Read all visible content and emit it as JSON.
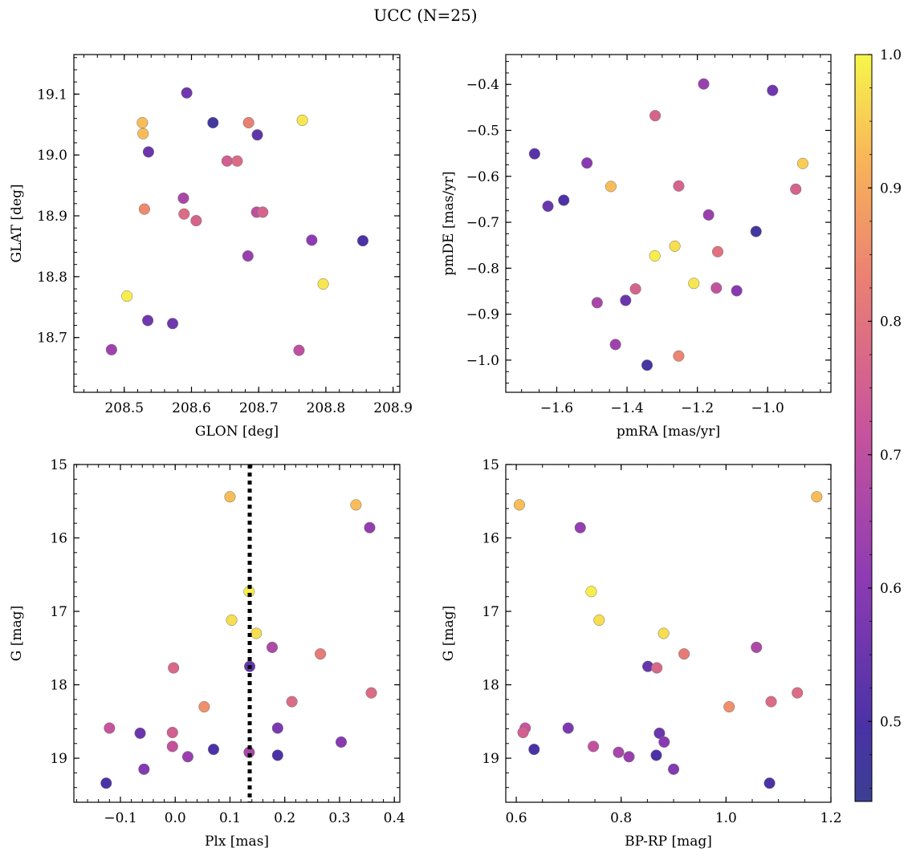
{
  "figure": {
    "title": "UCC (N=25)"
  },
  "colorbar": {
    "min": 0.44,
    "max": 1.0,
    "ticks": [
      "0.5",
      "0.6",
      "0.7",
      "0.8",
      "0.9",
      "1.0"
    ]
  },
  "chart_data": [
    {
      "type": "scatter",
      "xlabel": "GLON [deg]",
      "ylabel": "GLAT [deg]",
      "xlim": [
        208.425,
        208.91
      ],
      "ylim": [
        18.61,
        19.165
      ],
      "y_inverted": false,
      "xticks": [
        208.5,
        208.6,
        208.7,
        208.8,
        208.9
      ],
      "xtick_labels": [
        "208.5",
        "208.6",
        "208.7",
        "208.8",
        "208.9"
      ],
      "yticks": [
        18.7,
        18.8,
        18.9,
        19.0,
        19.1
      ],
      "ytick_labels": [
        "18.7",
        "18.8",
        "18.9",
        "19.0",
        "19.1"
      ],
      "x_minor": 0.02,
      "y_minor": 0.02,
      "points": [
        {
          "x": 208.593,
          "y": 19.102,
          "c": 0.56
        },
        {
          "x": 208.632,
          "y": 19.053,
          "c": 0.47
        },
        {
          "x": 208.527,
          "y": 19.053,
          "c": 0.93
        },
        {
          "x": 208.528,
          "y": 19.035,
          "c": 0.93
        },
        {
          "x": 208.536,
          "y": 19.005,
          "c": 0.55
        },
        {
          "x": 208.685,
          "y": 19.053,
          "c": 0.83
        },
        {
          "x": 208.698,
          "y": 19.033,
          "c": 0.53
        },
        {
          "x": 208.765,
          "y": 19.057,
          "c": 0.98
        },
        {
          "x": 208.653,
          "y": 18.99,
          "c": 0.75
        },
        {
          "x": 208.668,
          "y": 18.99,
          "c": 0.78
        },
        {
          "x": 208.588,
          "y": 18.929,
          "c": 0.66
        },
        {
          "x": 208.53,
          "y": 18.911,
          "c": 0.85
        },
        {
          "x": 208.589,
          "y": 18.903,
          "c": 0.78
        },
        {
          "x": 208.607,
          "y": 18.892,
          "c": 0.76
        },
        {
          "x": 208.697,
          "y": 18.906,
          "c": 0.7
        },
        {
          "x": 208.706,
          "y": 18.906,
          "c": 0.76
        },
        {
          "x": 208.779,
          "y": 18.86,
          "c": 0.61
        },
        {
          "x": 208.855,
          "y": 18.859,
          "c": 0.5
        },
        {
          "x": 208.684,
          "y": 18.834,
          "c": 0.63
        },
        {
          "x": 208.796,
          "y": 18.788,
          "c": 0.98
        },
        {
          "x": 208.504,
          "y": 18.768,
          "c": 0.99
        },
        {
          "x": 208.535,
          "y": 18.728,
          "c": 0.56
        },
        {
          "x": 208.572,
          "y": 18.723,
          "c": 0.56
        },
        {
          "x": 208.481,
          "y": 18.68,
          "c": 0.64
        },
        {
          "x": 208.76,
          "y": 18.679,
          "c": 0.7
        }
      ]
    },
    {
      "type": "scatter",
      "xlabel": "pmRA [mas/yr]",
      "ylabel": "pmDE [mas/yr]",
      "xlim": [
        -1.745,
        -0.82
      ],
      "ylim": [
        -1.07,
        -0.335
      ],
      "y_inverted": false,
      "xticks": [
        -1.6,
        -1.4,
        -1.2,
        -1.0
      ],
      "xtick_labels": [
        "−1.6",
        "−1.4",
        "−1.2",
        "−1.0"
      ],
      "yticks": [
        -1.0,
        -0.9,
        -0.8,
        -0.7,
        -0.6,
        -0.5,
        -0.4
      ],
      "ytick_labels": [
        "−1.0",
        "−0.9",
        "−0.8",
        "−0.7",
        "−0.6",
        "−0.5",
        "−0.4"
      ],
      "x_minor": 0.05,
      "y_minor": 0.025,
      "points": [
        {
          "x": -1.182,
          "y": -0.399,
          "c": 0.63
        },
        {
          "x": -0.986,
          "y": -0.413,
          "c": 0.56
        },
        {
          "x": -1.32,
          "y": -0.468,
          "c": 0.76
        },
        {
          "x": -1.663,
          "y": -0.551,
          "c": 0.52
        },
        {
          "x": -1.514,
          "y": -0.571,
          "c": 0.6
        },
        {
          "x": -1.446,
          "y": -0.622,
          "c": 0.93
        },
        {
          "x": -1.253,
          "y": -0.621,
          "c": 0.76
        },
        {
          "x": -0.9,
          "y": -0.572,
          "c": 0.95
        },
        {
          "x": -0.92,
          "y": -0.628,
          "c": 0.76
        },
        {
          "x": -1.625,
          "y": -0.665,
          "c": 0.55
        },
        {
          "x": -1.58,
          "y": -0.652,
          "c": 0.5
        },
        {
          "x": -1.168,
          "y": -0.684,
          "c": 0.63
        },
        {
          "x": -1.033,
          "y": -0.72,
          "c": 0.47
        },
        {
          "x": -1.264,
          "y": -0.752,
          "c": 0.97
        },
        {
          "x": -1.321,
          "y": -0.773,
          "c": 0.99
        },
        {
          "x": -1.142,
          "y": -0.764,
          "c": 0.8
        },
        {
          "x": -1.21,
          "y": -0.833,
          "c": 0.98
        },
        {
          "x": -1.376,
          "y": -0.845,
          "c": 0.76
        },
        {
          "x": -1.146,
          "y": -0.843,
          "c": 0.71
        },
        {
          "x": -1.088,
          "y": -0.849,
          "c": 0.6
        },
        {
          "x": -1.485,
          "y": -0.875,
          "c": 0.66
        },
        {
          "x": -1.404,
          "y": -0.87,
          "c": 0.55
        },
        {
          "x": -1.433,
          "y": -0.966,
          "c": 0.64
        },
        {
          "x": -1.253,
          "y": -0.991,
          "c": 0.84
        },
        {
          "x": -1.343,
          "y": -1.011,
          "c": 0.48
        }
      ]
    },
    {
      "type": "scatter",
      "xlabel": "Plx [mas]",
      "ylabel": "G [mag]",
      "xlim": [
        -0.185,
        0.41
      ],
      "ylim": [
        15.0,
        19.6
      ],
      "y_inverted": true,
      "xticks": [
        -0.1,
        0.0,
        0.1,
        0.2,
        0.3,
        0.4
      ],
      "xtick_labels": [
        "−0.1",
        "0.0",
        "0.1",
        "0.2",
        "0.3",
        "0.4"
      ],
      "yticks": [
        15,
        16,
        17,
        18,
        19
      ],
      "ytick_labels": [
        "15",
        "16",
        "17",
        "18",
        "19"
      ],
      "x_minor": 0.02,
      "y_minor": 0.2,
      "vline": 0.136,
      "points": [
        {
          "x": 0.1,
          "y": 15.44,
          "c": 0.93
        },
        {
          "x": 0.33,
          "y": 15.55,
          "c": 0.93
        },
        {
          "x": 0.355,
          "y": 15.86,
          "c": 0.62
        },
        {
          "x": 0.135,
          "y": 16.73,
          "c": 0.99
        },
        {
          "x": 0.103,
          "y": 17.12,
          "c": 0.97
        },
        {
          "x": 0.148,
          "y": 17.3,
          "c": 0.97
        },
        {
          "x": 0.177,
          "y": 17.49,
          "c": 0.67
        },
        {
          "x": 0.265,
          "y": 17.58,
          "c": 0.82
        },
        {
          "x": 0.136,
          "y": 17.75,
          "c": 0.54
        },
        {
          "x": -0.003,
          "y": 17.77,
          "c": 0.77
        },
        {
          "x": 0.358,
          "y": 18.11,
          "c": 0.78
        },
        {
          "x": 0.213,
          "y": 18.23,
          "c": 0.78
        },
        {
          "x": 0.053,
          "y": 18.3,
          "c": 0.86
        },
        {
          "x": -0.12,
          "y": 18.59,
          "c": 0.72
        },
        {
          "x": -0.064,
          "y": 18.66,
          "c": 0.55
        },
        {
          "x": -0.005,
          "y": 18.65,
          "c": 0.75
        },
        {
          "x": 0.187,
          "y": 18.59,
          "c": 0.58
        },
        {
          "x": -0.005,
          "y": 18.84,
          "c": 0.71
        },
        {
          "x": 0.303,
          "y": 18.78,
          "c": 0.6
        },
        {
          "x": 0.07,
          "y": 18.88,
          "c": 0.5
        },
        {
          "x": 0.135,
          "y": 18.92,
          "c": 0.66
        },
        {
          "x": 0.023,
          "y": 18.98,
          "c": 0.63
        },
        {
          "x": 0.187,
          "y": 18.96,
          "c": 0.5
        },
        {
          "x": -0.057,
          "y": 19.15,
          "c": 0.59
        },
        {
          "x": -0.126,
          "y": 19.34,
          "c": 0.5
        }
      ]
    },
    {
      "type": "scatter",
      "xlabel": "BP-RP [mag]",
      "ylabel": "G [mag]",
      "xlim": [
        0.58,
        1.2
      ],
      "ylim": [
        15.0,
        19.6
      ],
      "y_inverted": true,
      "xticks": [
        0.6,
        0.8,
        1.0,
        1.2
      ],
      "xtick_labels": [
        "0.6",
        "0.8",
        "1.0",
        "1.2"
      ],
      "yticks": [
        15,
        16,
        17,
        18,
        19
      ],
      "ytick_labels": [
        "15",
        "16",
        "17",
        "18",
        "19"
      ],
      "x_minor": 0.05,
      "y_minor": 0.2,
      "points": [
        {
          "x": 0.606,
          "y": 15.55,
          "c": 0.93
        },
        {
          "x": 1.173,
          "y": 15.44,
          "c": 0.93
        },
        {
          "x": 0.722,
          "y": 15.86,
          "c": 0.62
        },
        {
          "x": 0.743,
          "y": 16.73,
          "c": 0.99
        },
        {
          "x": 0.758,
          "y": 17.12,
          "c": 0.97
        },
        {
          "x": 0.881,
          "y": 17.3,
          "c": 0.97
        },
        {
          "x": 1.058,
          "y": 17.49,
          "c": 0.67
        },
        {
          "x": 0.92,
          "y": 17.58,
          "c": 0.82
        },
        {
          "x": 0.851,
          "y": 17.75,
          "c": 0.54
        },
        {
          "x": 0.868,
          "y": 17.77,
          "c": 0.77
        },
        {
          "x": 1.136,
          "y": 18.11,
          "c": 0.78
        },
        {
          "x": 1.086,
          "y": 18.23,
          "c": 0.78
        },
        {
          "x": 1.006,
          "y": 18.3,
          "c": 0.86
        },
        {
          "x": 0.617,
          "y": 18.59,
          "c": 0.72
        },
        {
          "x": 0.613,
          "y": 18.65,
          "c": 0.75
        },
        {
          "x": 0.699,
          "y": 18.59,
          "c": 0.58
        },
        {
          "x": 0.873,
          "y": 18.66,
          "c": 0.55
        },
        {
          "x": 0.634,
          "y": 18.88,
          "c": 0.5
        },
        {
          "x": 0.747,
          "y": 18.84,
          "c": 0.71
        },
        {
          "x": 0.882,
          "y": 18.78,
          "c": 0.6
        },
        {
          "x": 0.795,
          "y": 18.92,
          "c": 0.66
        },
        {
          "x": 0.815,
          "y": 18.98,
          "c": 0.63
        },
        {
          "x": 0.867,
          "y": 18.96,
          "c": 0.5
        },
        {
          "x": 0.9,
          "y": 19.15,
          "c": 0.59
        },
        {
          "x": 1.083,
          "y": 19.34,
          "c": 0.5
        }
      ]
    }
  ]
}
